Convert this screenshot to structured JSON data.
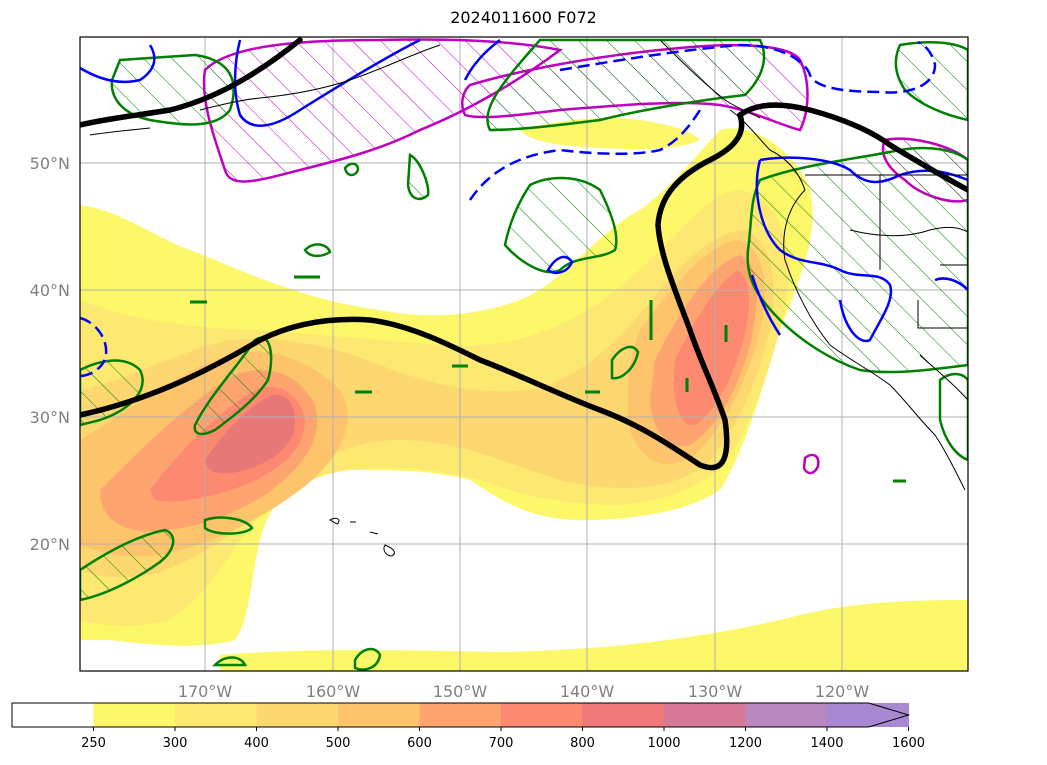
{
  "title": "2024011600 F072",
  "map": {
    "lat_labels": [
      "50°N",
      "40°N",
      "30°N",
      "20°N"
    ],
    "lon_labels": [
      "170°W",
      "160°W",
      "150°W",
      "140°W",
      "130°W",
      "120°W"
    ],
    "gridlines": true,
    "extent": {
      "lon_min": -180,
      "lon_max": -110,
      "lat_min": 10,
      "lat_max": 60
    },
    "shaded_field": {
      "colors": [
        "#ffffff",
        "#fcf86a",
        "#fde872",
        "#fdd870",
        "#fdc46c",
        "#fda470",
        "#fd8a70",
        "#f07878",
        "#d77898",
        "#b888c0",
        "#a888d0"
      ],
      "extend": "max"
    },
    "overlays": [
      {
        "name": "thick-black-contour",
        "color": "#000000"
      },
      {
        "name": "green-hatched-contours",
        "color": "#008000"
      },
      {
        "name": "magenta-hatched-contours",
        "color": "#c000c0"
      },
      {
        "name": "blue-solid-contours",
        "color": "#0000ff"
      },
      {
        "name": "blue-dashed-contours",
        "color": "#0000ff"
      }
    ]
  },
  "colorbar": {
    "ticks": [
      "250",
      "300",
      "400",
      "500",
      "600",
      "700",
      "800",
      "1000",
      "1200",
      "1400",
      "1600"
    ]
  }
}
